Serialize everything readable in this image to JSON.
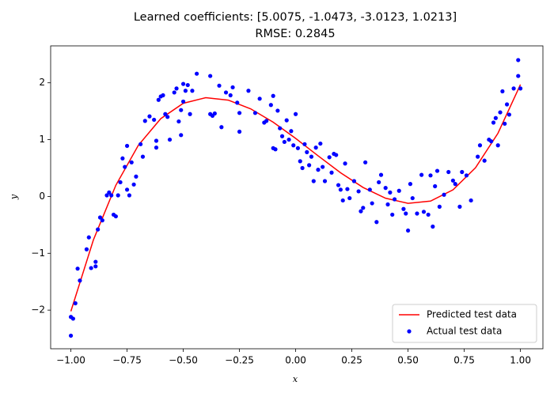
{
  "chart_data": {
    "type": "scatter",
    "title": "Learned coefficients: [5.0075, -1.0473, -3.0123, 1.0213]",
    "subtitle": "RMSE: 0.2845",
    "x_label": "x",
    "y_label": "y",
    "xlim": [
      -1.09,
      1.1
    ],
    "ylim": [
      -2.68,
      2.65
    ],
    "xticks": [
      {
        "value": -1,
        "label": "−1.00"
      },
      {
        "value": -0.75,
        "label": "−0.75"
      },
      {
        "value": -0.5,
        "label": "−0.50"
      },
      {
        "value": -0.25,
        "label": "−0.25"
      },
      {
        "value": 0,
        "label": "0.00"
      },
      {
        "value": 0.25,
        "label": "0.25"
      },
      {
        "value": 0.5,
        "label": "0.50"
      },
      {
        "value": 0.75,
        "label": "0.75"
      },
      {
        "value": 1,
        "label": "1.00"
      }
    ],
    "yticks": [
      {
        "value": -2,
        "label": "−2"
      },
      {
        "value": -1,
        "label": "−1"
      },
      0,
      1,
      2
    ],
    "legend": "lower right",
    "series": [
      {
        "name": "Predicted test data",
        "type": "line",
        "color": "#ff0000",
        "x": [
          -1,
          -0.9,
          -0.8,
          -0.7,
          -0.6,
          -0.5,
          -0.4,
          -0.3,
          -0.2,
          -0.1,
          0,
          0.1,
          0.2,
          0.3,
          0.4,
          0.5,
          0.6,
          0.7,
          0.8,
          0.9,
          1
        ],
        "values": [
          -2.0212,
          -0.7664,
          0.197,
          0.8991,
          1.3701,
          1.6398,
          1.7381,
          1.6955,
          1.5418,
          1.307,
          1.0213,
          0.7146,
          0.417,
          0.1585,
          -0.0307,
          -0.1208,
          -0.0815,
          0.1171,
          0.505,
          1.1124,
          1.9692
        ]
      },
      {
        "name": "Actual test data",
        "type": "scatter",
        "color": "#0000ff",
        "x": [
          -1.0,
          -1.0,
          -0.99,
          -0.98,
          -0.97,
          -0.96,
          -0.93,
          -0.92,
          -0.91,
          -0.89,
          -0.89,
          -0.88,
          -0.87,
          -0.86,
          -0.84,
          -0.83,
          -0.82,
          -0.81,
          -0.8,
          -0.79,
          -0.78,
          -0.77,
          -0.76,
          -0.75,
          -0.75,
          -0.74,
          -0.73,
          -0.72,
          -0.71,
          -0.69,
          -0.68,
          -0.67,
          -0.65,
          -0.63,
          -0.62,
          -0.62,
          -0.61,
          -0.6,
          -0.59,
          -0.58,
          -0.57,
          -0.56,
          -0.54,
          -0.53,
          -0.52,
          -0.51,
          -0.51,
          -0.5,
          -0.5,
          -0.49,
          -0.48,
          -0.47,
          -0.46,
          -0.44,
          -0.38,
          -0.38,
          -0.37,
          -0.36,
          -0.34,
          -0.33,
          -0.31,
          -0.29,
          -0.28,
          -0.26,
          -0.25,
          -0.25,
          -0.21,
          -0.18,
          -0.16,
          -0.14,
          -0.13,
          -0.11,
          -0.1,
          -0.1,
          -0.09,
          -0.08,
          -0.07,
          -0.06,
          -0.05,
          -0.04,
          -0.03,
          -0.02,
          -0.01,
          0.0,
          0.01,
          0.02,
          0.03,
          0.04,
          0.05,
          0.06,
          0.07,
          0.08,
          0.09,
          0.1,
          0.11,
          0.12,
          0.13,
          0.15,
          0.16,
          0.17,
          0.18,
          0.19,
          0.2,
          0.21,
          0.22,
          0.23,
          0.24,
          0.26,
          0.28,
          0.29,
          0.3,
          0.31,
          0.33,
          0.34,
          0.36,
          0.37,
          0.38,
          0.4,
          0.41,
          0.42,
          0.43,
          0.44,
          0.46,
          0.48,
          0.49,
          0.5,
          0.51,
          0.52,
          0.54,
          0.56,
          0.57,
          0.59,
          0.6,
          0.61,
          0.62,
          0.63,
          0.64,
          0.66,
          0.68,
          0.7,
          0.71,
          0.73,
          0.74,
          0.76,
          0.78,
          0.81,
          0.82,
          0.84,
          0.86,
          0.87,
          0.88,
          0.89,
          0.9,
          0.91,
          0.92,
          0.93,
          0.94,
          0.95,
          0.97,
          0.99,
          0.99,
          1.0
        ],
        "values": [
          -2.45,
          -2.12,
          -2.15,
          -1.88,
          -1.27,
          -1.48,
          -0.93,
          -0.72,
          -1.26,
          -1.15,
          -1.23,
          -0.58,
          -0.37,
          -0.42,
          0.02,
          0.07,
          0.02,
          -0.32,
          -0.35,
          0.02,
          0.25,
          0.67,
          0.52,
          0.89,
          0.12,
          0.02,
          0.6,
          0.21,
          0.35,
          0.92,
          0.7,
          1.33,
          1.41,
          1.35,
          0.98,
          0.86,
          1.7,
          1.76,
          1.78,
          1.45,
          1.4,
          1.0,
          1.83,
          1.9,
          1.32,
          1.08,
          1.52,
          1.67,
          1.98,
          1.86,
          1.96,
          1.45,
          1.86,
          2.16,
          2.12,
          1.45,
          1.42,
          1.46,
          1.95,
          1.22,
          1.83,
          1.78,
          1.92,
          1.65,
          1.47,
          1.14,
          1.86,
          1.47,
          1.72,
          1.3,
          1.33,
          1.61,
          1.77,
          0.85,
          0.83,
          1.51,
          1.2,
          1.06,
          0.96,
          1.34,
          1.0,
          1.15,
          0.9,
          1.45,
          0.85,
          0.62,
          0.5,
          0.92,
          0.78,
          0.55,
          0.7,
          0.27,
          0.86,
          0.47,
          0.93,
          0.52,
          0.27,
          0.69,
          0.42,
          0.75,
          0.73,
          0.2,
          0.12,
          -0.07,
          0.58,
          0.13,
          -0.03,
          0.27,
          0.09,
          -0.26,
          -0.2,
          0.6,
          0.12,
          -0.12,
          -0.45,
          0.25,
          0.38,
          0.15,
          -0.14,
          0.07,
          -0.32,
          -0.05,
          0.1,
          -0.22,
          -0.3,
          -0.6,
          0.22,
          -0.03,
          -0.3,
          0.38,
          -0.27,
          -0.32,
          0.37,
          -0.53,
          0.18,
          0.45,
          -0.18,
          0.03,
          0.43,
          0.28,
          0.22,
          -0.18,
          0.43,
          0.37,
          -0.07,
          0.7,
          0.9,
          0.63,
          1.0,
          0.97,
          1.3,
          1.38,
          0.9,
          1.48,
          1.85,
          1.28,
          1.62,
          1.44,
          1.9,
          2.4,
          2.12,
          1.9
        ]
      }
    ]
  }
}
